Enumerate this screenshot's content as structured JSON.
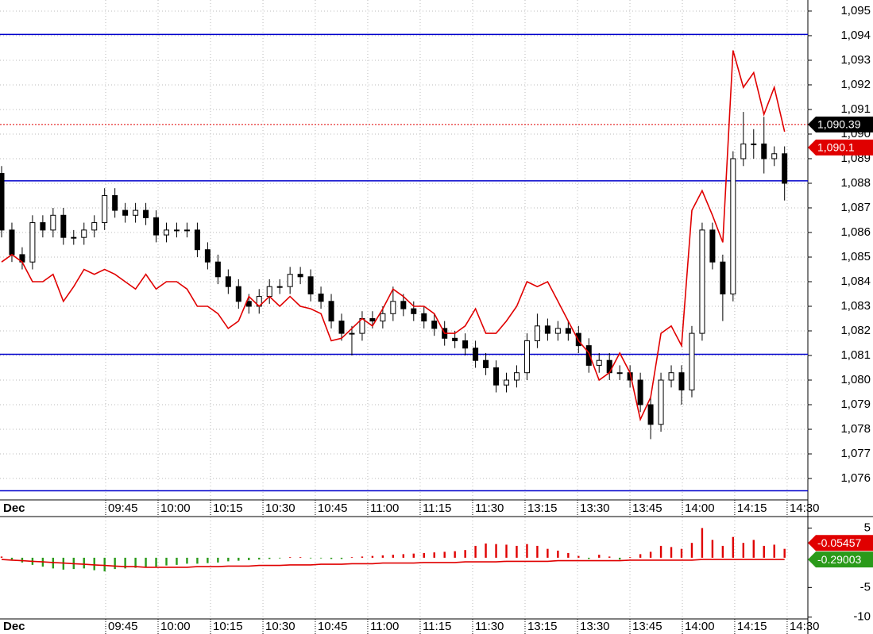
{
  "chart_data": [
    {
      "type": "candlestick",
      "date_label": "Dec",
      "open": [
        1088.4,
        1086.1,
        1085.1,
        1084.8,
        1086.4,
        1086.1,
        1086.7,
        1085.8,
        1085.8,
        1086.1,
        1086.4,
        1087.5,
        1086.9,
        1086.7,
        1086.9,
        1086.6,
        1085.9,
        1086.1,
        1086.1,
        1086.1,
        1085.3,
        1084.8,
        1084.2,
        1083.8,
        1083.2,
        1083.0,
        1083.4,
        1083.8,
        1083.8,
        1084.3,
        1084.2,
        1083.5,
        1083.2,
        1082.4,
        1081.9,
        1081.9,
        1082.5,
        1082.4,
        1082.7,
        1083.2,
        1082.9,
        1082.7,
        1082.4,
        1082.1,
        1081.7,
        1081.6,
        1081.3,
        1080.8,
        1080.5,
        1079.8,
        1080.0,
        1080.3,
        1081.6,
        1082.2,
        1081.9,
        1082.1,
        1081.9,
        1081.4,
        1080.6,
        1080.8,
        1080.3,
        1080.3,
        1080.0,
        1079.0,
        1078.2,
        1080.0,
        1080.3,
        1079.6,
        1081.9,
        1086.1,
        1084.8,
        1083.5,
        1089.0,
        1089.6,
        1089.6,
        1089.0,
        1089.2
      ],
      "high": [
        1088.7,
        1086.4,
        1085.4,
        1086.7,
        1086.7,
        1087.0,
        1087.0,
        1086.1,
        1086.4,
        1086.7,
        1087.8,
        1087.8,
        1087.2,
        1087.2,
        1087.2,
        1086.9,
        1086.4,
        1086.4,
        1086.4,
        1086.4,
        1085.6,
        1085.1,
        1084.5,
        1084.1,
        1083.5,
        1083.7,
        1084.1,
        1084.1,
        1084.6,
        1084.6,
        1084.5,
        1083.8,
        1083.5,
        1082.7,
        1082.2,
        1082.8,
        1082.8,
        1083.0,
        1083.8,
        1083.5,
        1083.2,
        1083.0,
        1082.7,
        1082.4,
        1082.0,
        1081.9,
        1081.6,
        1081.1,
        1080.8,
        1080.3,
        1080.6,
        1081.9,
        1082.7,
        1082.5,
        1082.4,
        1082.4,
        1082.2,
        1081.7,
        1081.1,
        1081.1,
        1080.6,
        1080.6,
        1080.3,
        1079.3,
        1080.3,
        1080.6,
        1080.6,
        1082.2,
        1086.4,
        1086.4,
        1085.1,
        1089.3,
        1090.9,
        1090.2,
        1090.7,
        1089.5,
        1089.5
      ],
      "low": [
        1085.8,
        1084.8,
        1084.5,
        1084.5,
        1085.8,
        1085.8,
        1085.5,
        1085.5,
        1085.5,
        1085.8,
        1086.1,
        1086.6,
        1086.4,
        1086.4,
        1086.3,
        1085.6,
        1085.6,
        1085.8,
        1085.8,
        1085.0,
        1084.5,
        1083.9,
        1083.5,
        1082.9,
        1082.7,
        1082.7,
        1083.1,
        1083.5,
        1083.5,
        1083.9,
        1083.2,
        1082.9,
        1082.1,
        1081.6,
        1081.0,
        1081.6,
        1082.1,
        1082.1,
        1082.4,
        1082.6,
        1082.4,
        1082.1,
        1081.8,
        1081.4,
        1081.3,
        1081.0,
        1080.5,
        1080.2,
        1079.5,
        1079.5,
        1079.7,
        1080.0,
        1081.3,
        1081.6,
        1081.6,
        1081.6,
        1081.1,
        1080.3,
        1080.3,
        1080.0,
        1080.0,
        1079.7,
        1078.7,
        1077.6,
        1077.9,
        1079.7,
        1079.0,
        1079.3,
        1081.6,
        1084.5,
        1082.4,
        1083.2,
        1088.7,
        1089.0,
        1088.4,
        1088.7,
        1087.3
      ],
      "close": [
        1086.1,
        1085.1,
        1084.8,
        1086.4,
        1086.1,
        1086.7,
        1085.8,
        1085.8,
        1086.1,
        1086.4,
        1087.5,
        1086.9,
        1086.7,
        1086.9,
        1086.6,
        1085.9,
        1086.1,
        1086.1,
        1086.1,
        1085.3,
        1084.8,
        1084.2,
        1083.8,
        1083.2,
        1083.0,
        1083.4,
        1083.8,
        1083.8,
        1084.3,
        1084.2,
        1083.5,
        1083.2,
        1082.4,
        1081.9,
        1081.9,
        1082.5,
        1082.4,
        1082.7,
        1083.2,
        1082.9,
        1082.7,
        1082.4,
        1082.1,
        1081.7,
        1081.6,
        1081.3,
        1080.8,
        1080.5,
        1079.8,
        1080.0,
        1080.3,
        1081.6,
        1082.2,
        1081.9,
        1082.1,
        1081.9,
        1081.4,
        1080.6,
        1080.8,
        1080.3,
        1080.3,
        1080.0,
        1079.0,
        1078.2,
        1080.0,
        1080.3,
        1079.6,
        1081.9,
        1086.1,
        1084.8,
        1083.5,
        1089.0,
        1089.6,
        1089.6,
        1089.0,
        1089.2,
        1088.0
      ],
      "line": {
        "color": "#e00000",
        "values": [
          1084.8,
          1085.1,
          1084.8,
          1084.0,
          1084.0,
          1084.3,
          1083.2,
          1083.8,
          1084.5,
          1084.3,
          1084.5,
          1084.3,
          1084.0,
          1083.7,
          1084.3,
          1083.7,
          1084.0,
          1084.0,
          1083.7,
          1083.0,
          1083.0,
          1082.7,
          1082.1,
          1082.4,
          1083.4,
          1083.0,
          1083.4,
          1083.0,
          1083.4,
          1083.0,
          1082.9,
          1082.7,
          1081.6,
          1081.7,
          1082.1,
          1082.5,
          1082.2,
          1082.9,
          1083.7,
          1083.4,
          1083.0,
          1083.0,
          1082.7,
          1081.9,
          1081.9,
          1082.2,
          1082.9,
          1081.9,
          1081.9,
          1082.4,
          1083.0,
          1084.0,
          1083.8,
          1084.0,
          1083.2,
          1082.4,
          1081.6,
          1081.1,
          1080.0,
          1080.3,
          1081.1,
          1080.3,
          1078.4,
          1079.3,
          1081.9,
          1082.2,
          1081.4,
          1086.9,
          1087.7,
          1086.7,
          1085.6,
          1093.4,
          1091.9,
          1092.5,
          1090.8,
          1091.9,
          1090.1
        ]
      },
      "xlim": [
        -0.154,
        78.26
      ],
      "xticks": [
        {
          "value": 10.1,
          "label": "09:45"
        },
        {
          "value": 15.19,
          "label": "10:00"
        },
        {
          "value": 20.28,
          "label": "10:15"
        },
        {
          "value": 25.37,
          "label": "10:30"
        },
        {
          "value": 30.45,
          "label": "10:45"
        },
        {
          "value": 35.54,
          "label": "11:00"
        },
        {
          "value": 40.63,
          "label": "11:15"
        },
        {
          "value": 45.72,
          "label": "11:30"
        },
        {
          "value": 50.81,
          "label": "13:15"
        },
        {
          "value": 55.9,
          "label": "13:30"
        },
        {
          "value": 60.99,
          "label": "13:45"
        },
        {
          "value": 66.08,
          "label": "14:00"
        },
        {
          "value": 71.16,
          "label": "14:15"
        },
        {
          "value": 76.25,
          "label": "14:30"
        }
      ],
      "ylim": [
        1075.13,
        1095.45
      ],
      "yticks": [
        {
          "value": 1076,
          "label": "1,076"
        },
        {
          "value": 1077,
          "label": "1,077"
        },
        {
          "value": 1078,
          "label": "1,078"
        },
        {
          "value": 1079,
          "label": "1,079"
        },
        {
          "value": 1080,
          "label": "1,080"
        },
        {
          "value": 1081,
          "label": "1,081"
        },
        {
          "value": 1082,
          "label": "1,082"
        },
        {
          "value": 1083,
          "label": "1,083"
        },
        {
          "value": 1084,
          "label": "1,084"
        },
        {
          "value": 1085,
          "label": "1,085"
        },
        {
          "value": 1086,
          "label": "1,086"
        },
        {
          "value": 1087,
          "label": "1,087"
        },
        {
          "value": 1088,
          "label": "1,088"
        },
        {
          "value": 1089,
          "label": "1,089"
        },
        {
          "value": 1090,
          "label": "1,090"
        },
        {
          "value": 1091,
          "label": "1,091"
        },
        {
          "value": 1092,
          "label": "1,092"
        },
        {
          "value": 1093,
          "label": "1,093"
        },
        {
          "value": 1094,
          "label": "1,094"
        },
        {
          "value": 1095,
          "label": "1,095"
        }
      ],
      "levels": [
        1094.05,
        1088.1,
        1081.05,
        1075.5
      ],
      "level_color": "#0000cc",
      "grid": true,
      "tags": [
        {
          "value": 1090.39,
          "label": "1,090.39",
          "color": "#000000"
        },
        {
          "value": 1090.1,
          "label": "1,090.1",
          "color": "#e00000"
        }
      ]
    },
    {
      "type": "histogram",
      "values": [
        0.2,
        -0.3,
        -0.8,
        -1.2,
        -1.5,
        -1.8,
        -2.0,
        -1.9,
        -1.8,
        -2.1,
        -2.3,
        -1.9,
        -1.8,
        -1.7,
        -1.6,
        -1.5,
        -1.3,
        -1.2,
        -1.0,
        -1.0,
        -0.9,
        -0.8,
        -0.6,
        -0.5,
        -0.4,
        -0.3,
        -0.2,
        -0.1,
        0.1,
        0.1,
        -0.1,
        -0.1,
        -0.2,
        -0.2,
        0.1,
        0.2,
        0.3,
        0.4,
        0.5,
        0.6,
        0.7,
        0.8,
        0.9,
        1.0,
        1.1,
        1.3,
        2.0,
        2.4,
        2.3,
        2.2,
        2.0,
        2.3,
        2.0,
        1.5,
        1.2,
        0.8,
        0.3,
        -0.2,
        0.5,
        0.2,
        -0.3,
        0.1,
        0.6,
        1.0,
        2.0,
        1.8,
        1.5,
        2.5,
        5.0,
        3.0,
        2.0,
        3.5,
        2.5,
        3.0,
        2.0,
        2.2,
        1.5
      ],
      "positive_color": "#e00000",
      "negative_color": "#2a9a1a",
      "line": {
        "color": "#e00000",
        "values": [
          -0.3,
          -0.4,
          -0.5,
          -0.6,
          -0.7,
          -0.8,
          -0.9,
          -1.0,
          -1.1,
          -1.2,
          -1.3,
          -1.4,
          -1.5,
          -1.5,
          -1.6,
          -1.6,
          -1.6,
          -1.6,
          -1.6,
          -1.5,
          -1.5,
          -1.5,
          -1.4,
          -1.4,
          -1.4,
          -1.3,
          -1.3,
          -1.3,
          -1.2,
          -1.2,
          -1.2,
          -1.1,
          -1.1,
          -1.1,
          -1.0,
          -1.0,
          -1.0,
          -0.9,
          -0.9,
          -0.9,
          -0.9,
          -0.8,
          -0.8,
          -0.8,
          -0.8,
          -0.7,
          -0.7,
          -0.7,
          -0.7,
          -0.6,
          -0.6,
          -0.6,
          -0.6,
          -0.6,
          -0.5,
          -0.5,
          -0.5,
          -0.5,
          -0.5,
          -0.5,
          -0.5,
          -0.4,
          -0.4,
          -0.4,
          -0.4,
          -0.4,
          -0.4,
          -0.4,
          -0.3,
          -0.3,
          -0.3,
          -0.3,
          -0.3,
          -0.3,
          -0.3,
          -0.3,
          -0.29003
        ]
      },
      "ylim": [
        -10.3,
        6.8
      ],
      "yticks": [
        -10,
        -5,
        5
      ],
      "tags": [
        {
          "value": -0.05457,
          "label": "-0.05457",
          "color": "#e00000"
        },
        {
          "value": -0.29003,
          "label": "-0.29003",
          "color": "#2a9a1a"
        }
      ]
    }
  ]
}
